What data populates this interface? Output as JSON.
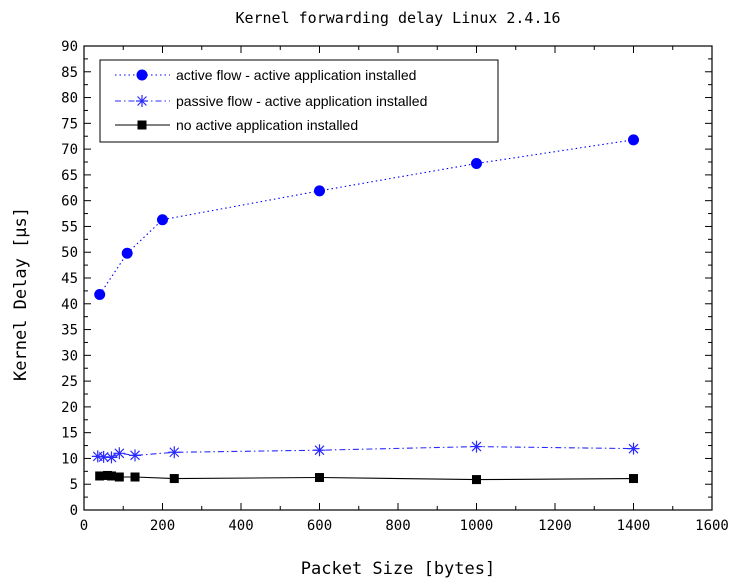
{
  "chart_data": {
    "type": "line",
    "title": "Kernel forwarding delay Linux 2.4.16",
    "xlabel": "Packet Size [bytes]",
    "ylabel": "Kernel Delay [µs]",
    "xlim": [
      0,
      1600
    ],
    "ylim": [
      0,
      90
    ],
    "xticks": [
      0,
      200,
      400,
      600,
      800,
      1000,
      1200,
      1400,
      1600
    ],
    "yticks": [
      0,
      5,
      10,
      15,
      20,
      25,
      30,
      35,
      40,
      45,
      50,
      55,
      60,
      65,
      70,
      75,
      80,
      85,
      90
    ],
    "grid": false,
    "legend_position": "top-left",
    "series": [
      {
        "name": "active flow - active application installed",
        "color": "#0000ff",
        "marker": "circle",
        "line_style": "dotted",
        "x": [
          40,
          110,
          200,
          600,
          1000,
          1400
        ],
        "y": [
          41.8,
          49.8,
          56.3,
          61.9,
          67.2,
          71.8
        ]
      },
      {
        "name": "passive flow - active application installed",
        "color": "#2a2aff",
        "marker": "star",
        "line_style": "dash-dot",
        "x": [
          35,
          50,
          70,
          90,
          130,
          230,
          600,
          1000,
          1400
        ],
        "y": [
          10.4,
          10.3,
          10.2,
          11.0,
          10.6,
          11.2,
          11.6,
          12.3,
          11.9
        ]
      },
      {
        "name": "no active application installed",
        "color": "#000000",
        "marker": "square",
        "line_style": "solid",
        "x": [
          40,
          60,
          70,
          90,
          130,
          230,
          600,
          1000,
          1400
        ],
        "y": [
          6.6,
          6.7,
          6.6,
          6.4,
          6.4,
          6.1,
          6.3,
          5.9,
          6.1
        ]
      }
    ]
  }
}
